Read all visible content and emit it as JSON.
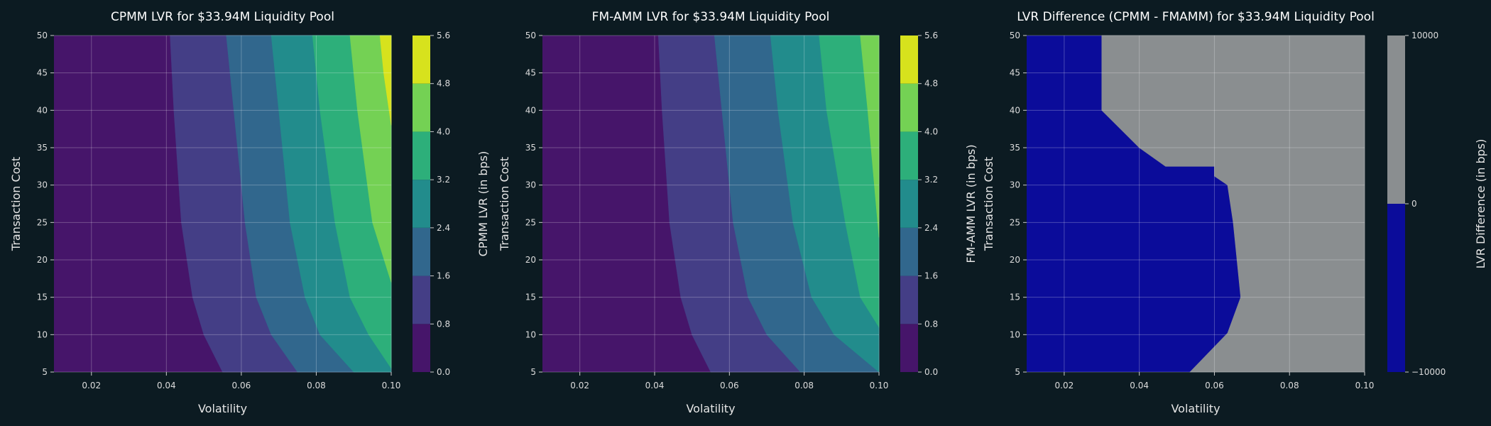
{
  "chart_data": [
    {
      "type": "contourf",
      "title": "CPMM LVR for $33.94M Liquidity Pool",
      "xlabel": "Volatility",
      "ylabel": "Transaction Cost",
      "xlim": [
        0.01,
        0.1
      ],
      "ylim": [
        5,
        50
      ],
      "xticks": [
        "0.02",
        "0.04",
        "0.06",
        "0.08",
        "0.10"
      ],
      "yticks": [
        "5",
        "10",
        "15",
        "20",
        "25",
        "30",
        "35",
        "40",
        "45",
        "50"
      ],
      "colorbar": {
        "label": "CPMM LVR (in bps)",
        "levels": [
          0.0,
          0.8,
          1.6,
          2.4,
          3.2,
          4.0,
          4.8,
          5.6
        ],
        "tick_labels": [
          "0.0",
          "0.8",
          "1.6",
          "2.4",
          "3.2",
          "4.0",
          "4.8",
          "5.6"
        ],
        "colors": [
          "#46156a",
          "#443e86",
          "#31678d",
          "#228c8c",
          "#2daf7a",
          "#74d154",
          "#d7e21d"
        ]
      },
      "contour_boundaries": [
        {
          "level": 0.8,
          "points": [
            [
              0.041,
              50
            ],
            [
              0.042,
              40
            ],
            [
              0.044,
              25
            ],
            [
              0.047,
              15
            ],
            [
              0.05,
              10
            ],
            [
              0.055,
              5
            ]
          ]
        },
        {
          "level": 1.6,
          "points": [
            [
              0.056,
              50
            ],
            [
              0.058,
              40
            ],
            [
              0.061,
              25
            ],
            [
              0.064,
              15
            ],
            [
              0.068,
              10
            ],
            [
              0.075,
              5
            ]
          ]
        },
        {
          "level": 2.4,
          "points": [
            [
              0.068,
              50
            ],
            [
              0.07,
              40
            ],
            [
              0.073,
              25
            ],
            [
              0.077,
              15
            ],
            [
              0.081,
              10
            ],
            [
              0.09,
              5
            ]
          ]
        },
        {
          "level": 3.2,
          "points": [
            [
              0.079,
              50
            ],
            [
              0.081,
              40
            ],
            [
              0.085,
              25
            ],
            [
              0.089,
              15
            ],
            [
              0.094,
              10
            ],
            [
              0.1,
              5.5
            ]
          ]
        },
        {
          "level": 4.0,
          "points": [
            [
              0.089,
              50
            ],
            [
              0.091,
              40
            ],
            [
              0.095,
              25
            ],
            [
              0.1,
              17
            ]
          ]
        },
        {
          "level": 4.8,
          "points": [
            [
              0.097,
              50
            ],
            [
              0.098,
              45
            ],
            [
              0.1,
              38
            ]
          ]
        }
      ]
    },
    {
      "type": "contourf",
      "title": "FM-AMM LVR for $33.94M Liquidity Pool",
      "xlabel": "Volatility",
      "ylabel": "Transaction Cost",
      "xlim": [
        0.01,
        0.1
      ],
      "ylim": [
        5,
        50
      ],
      "xticks": [
        "0.02",
        "0.04",
        "0.06",
        "0.08",
        "0.10"
      ],
      "yticks": [
        "5",
        "10",
        "15",
        "20",
        "25",
        "30",
        "35",
        "40",
        "45",
        "50"
      ],
      "colorbar": {
        "label": "FM-AMM LVR (in bps)",
        "levels": [
          0.0,
          0.8,
          1.6,
          2.4,
          3.2,
          4.0,
          4.8,
          5.6
        ],
        "tick_labels": [
          "0.0",
          "0.8",
          "1.6",
          "2.4",
          "3.2",
          "4.0",
          "4.8",
          "5.6"
        ],
        "colors": [
          "#46156a",
          "#443e86",
          "#31678d",
          "#228c8c",
          "#2daf7a",
          "#74d154",
          "#d7e21d"
        ]
      },
      "contour_boundaries": [
        {
          "level": 0.8,
          "points": [
            [
              0.041,
              50
            ],
            [
              0.042,
              40
            ],
            [
              0.044,
              25
            ],
            [
              0.047,
              15
            ],
            [
              0.05,
              10
            ],
            [
              0.055,
              5
            ]
          ]
        },
        {
          "level": 1.6,
          "points": [
            [
              0.056,
              50
            ],
            [
              0.058,
              40
            ],
            [
              0.061,
              25
            ],
            [
              0.065,
              15
            ],
            [
              0.07,
              10
            ],
            [
              0.079,
              5
            ]
          ]
        },
        {
          "level": 2.4,
          "points": [
            [
              0.071,
              50
            ],
            [
              0.073,
              40
            ],
            [
              0.077,
              25
            ],
            [
              0.082,
              15
            ],
            [
              0.088,
              10
            ],
            [
              0.1,
              5
            ]
          ]
        },
        {
          "level": 3.2,
          "points": [
            [
              0.084,
              50
            ],
            [
              0.086,
              40
            ],
            [
              0.091,
              25
            ],
            [
              0.095,
              15
            ],
            [
              0.1,
              11
            ]
          ]
        },
        {
          "level": 4.0,
          "points": [
            [
              0.095,
              50
            ],
            [
              0.097,
              40
            ],
            [
              0.1,
              23
            ]
          ]
        }
      ]
    },
    {
      "type": "contourf",
      "title": "LVR Difference (CPMM - FMAMM) for $33.94M Liquidity Pool",
      "xlabel": "Volatility",
      "ylabel": "Transaction Cost",
      "xlim": [
        0.01,
        0.1
      ],
      "ylim": [
        5,
        50
      ],
      "xticks": [
        "0.02",
        "0.04",
        "0.06",
        "0.08",
        "0.10"
      ],
      "yticks": [
        "5",
        "10",
        "15",
        "20",
        "25",
        "30",
        "35",
        "40",
        "45",
        "50"
      ],
      "colorbar": {
        "label": "LVR Difference (in bps)",
        "levels": [
          -10000,
          0,
          10000
        ],
        "tick_labels": [
          "−10000",
          "0",
          "10000"
        ],
        "colors": [
          "#0b0c9a",
          "#8a8e90"
        ]
      },
      "contour_boundaries": [
        {
          "level": 0,
          "points": [
            [
              0.03,
              50
            ],
            [
              0.03,
              40
            ],
            [
              0.04,
              35
            ],
            [
              0.047,
              32.5
            ],
            [
              0.06,
              32.5
            ],
            [
              0.06,
              31.2
            ],
            [
              0.0635,
              30
            ],
            [
              0.065,
              25
            ],
            [
              0.066,
              20
            ],
            [
              0.067,
              15
            ],
            [
              0.0635,
              10.2
            ],
            [
              0.0535,
              5
            ]
          ]
        }
      ]
    }
  ]
}
